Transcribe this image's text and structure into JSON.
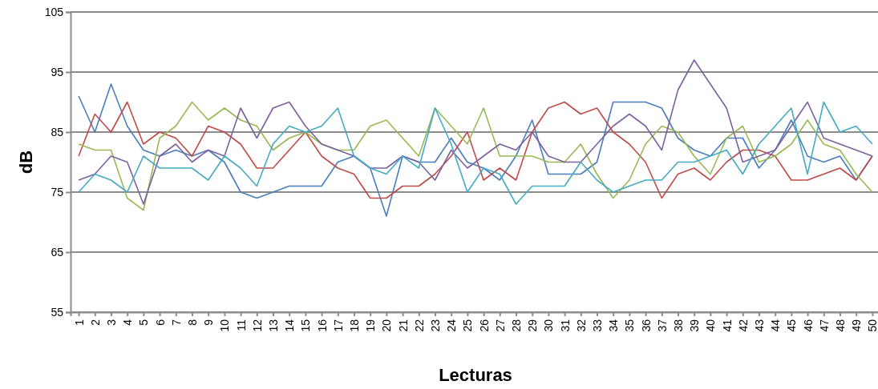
{
  "chart_data": {
    "type": "line",
    "xlabel": "Lecturas",
    "ylabel": "dB",
    "categories": [
      "1",
      "2",
      "3",
      "4",
      "5",
      "6",
      "7",
      "8",
      "9",
      "10",
      "11",
      "12",
      "13",
      "14",
      "15",
      "16",
      "17",
      "18",
      "19",
      "20",
      "21",
      "22",
      "23",
      "24",
      "25",
      "26",
      "27",
      "28",
      "29",
      "30",
      "31",
      "32",
      "33",
      "34",
      "35",
      "36",
      "37",
      "38",
      "39",
      "40",
      "41",
      "42",
      "43",
      "44",
      "45",
      "46",
      "47",
      "48",
      "49",
      "50"
    ],
    "ylim": [
      55,
      105
    ],
    "yticks": [
      55,
      65,
      75,
      85,
      95,
      105
    ],
    "grid": "y",
    "legend": false,
    "marker": "none",
    "line_style": "solid",
    "series": [
      {
        "color": "#4a7ebb",
        "values": [
          91,
          85,
          93,
          86,
          82,
          81,
          82,
          81,
          82,
          80,
          75,
          74,
          75,
          76,
          76,
          76,
          80,
          81,
          79,
          71,
          81,
          80,
          80,
          84,
          80,
          79,
          77,
          81,
          87,
          78,
          78,
          78,
          80,
          90,
          90,
          90,
          89,
          84,
          82,
          81,
          84,
          84,
          79,
          82,
          87,
          81,
          80,
          81,
          77,
          81
        ]
      },
      {
        "color": "#be4b48",
        "values": [
          81,
          88,
          85,
          90,
          83,
          85,
          84,
          81,
          86,
          85,
          83,
          79,
          79,
          82,
          85,
          81,
          79,
          78,
          74,
          74,
          76,
          76,
          78,
          81,
          85,
          77,
          79,
          77,
          85,
          89,
          90,
          88,
          89,
          85,
          83,
          80,
          74,
          78,
          79,
          77,
          80,
          82,
          82,
          81,
          77,
          77,
          78,
          79,
          77,
          81
        ]
      },
      {
        "color": "#98b954",
        "values": [
          83,
          82,
          82,
          74,
          72,
          84,
          86,
          90,
          87,
          89,
          87,
          86,
          82,
          84,
          85,
          83,
          82,
          82,
          86,
          87,
          84,
          81,
          89,
          86,
          83,
          89,
          81,
          81,
          81,
          80,
          80,
          83,
          78,
          74,
          77,
          83,
          86,
          85,
          81,
          78,
          84,
          86,
          80,
          81,
          83,
          87,
          83,
          82,
          78,
          75
        ]
      },
      {
        "color": "#7d60a0",
        "values": [
          77,
          78,
          81,
          80,
          73,
          81,
          83,
          80,
          82,
          81,
          89,
          84,
          89,
          90,
          86,
          83,
          82,
          81,
          79,
          79,
          81,
          80,
          77,
          82,
          79,
          81,
          83,
          82,
          85,
          81,
          80,
          80,
          83,
          86,
          88,
          86,
          82,
          92,
          97,
          93,
          89,
          80,
          81,
          82,
          86,
          90,
          84,
          83,
          82,
          81
        ]
      },
      {
        "color": "#46aac5",
        "values": [
          75,
          78,
          77,
          75,
          81,
          79,
          79,
          79,
          77,
          81,
          79,
          76,
          83,
          86,
          85,
          86,
          89,
          81,
          79,
          78,
          81,
          79,
          89,
          83,
          75,
          79,
          78,
          73,
          76,
          76,
          76,
          80,
          77,
          75,
          76,
          77,
          77,
          80,
          80,
          81,
          82,
          78,
          83,
          86,
          89,
          78,
          90,
          85,
          86,
          83
        ]
      }
    ]
  }
}
